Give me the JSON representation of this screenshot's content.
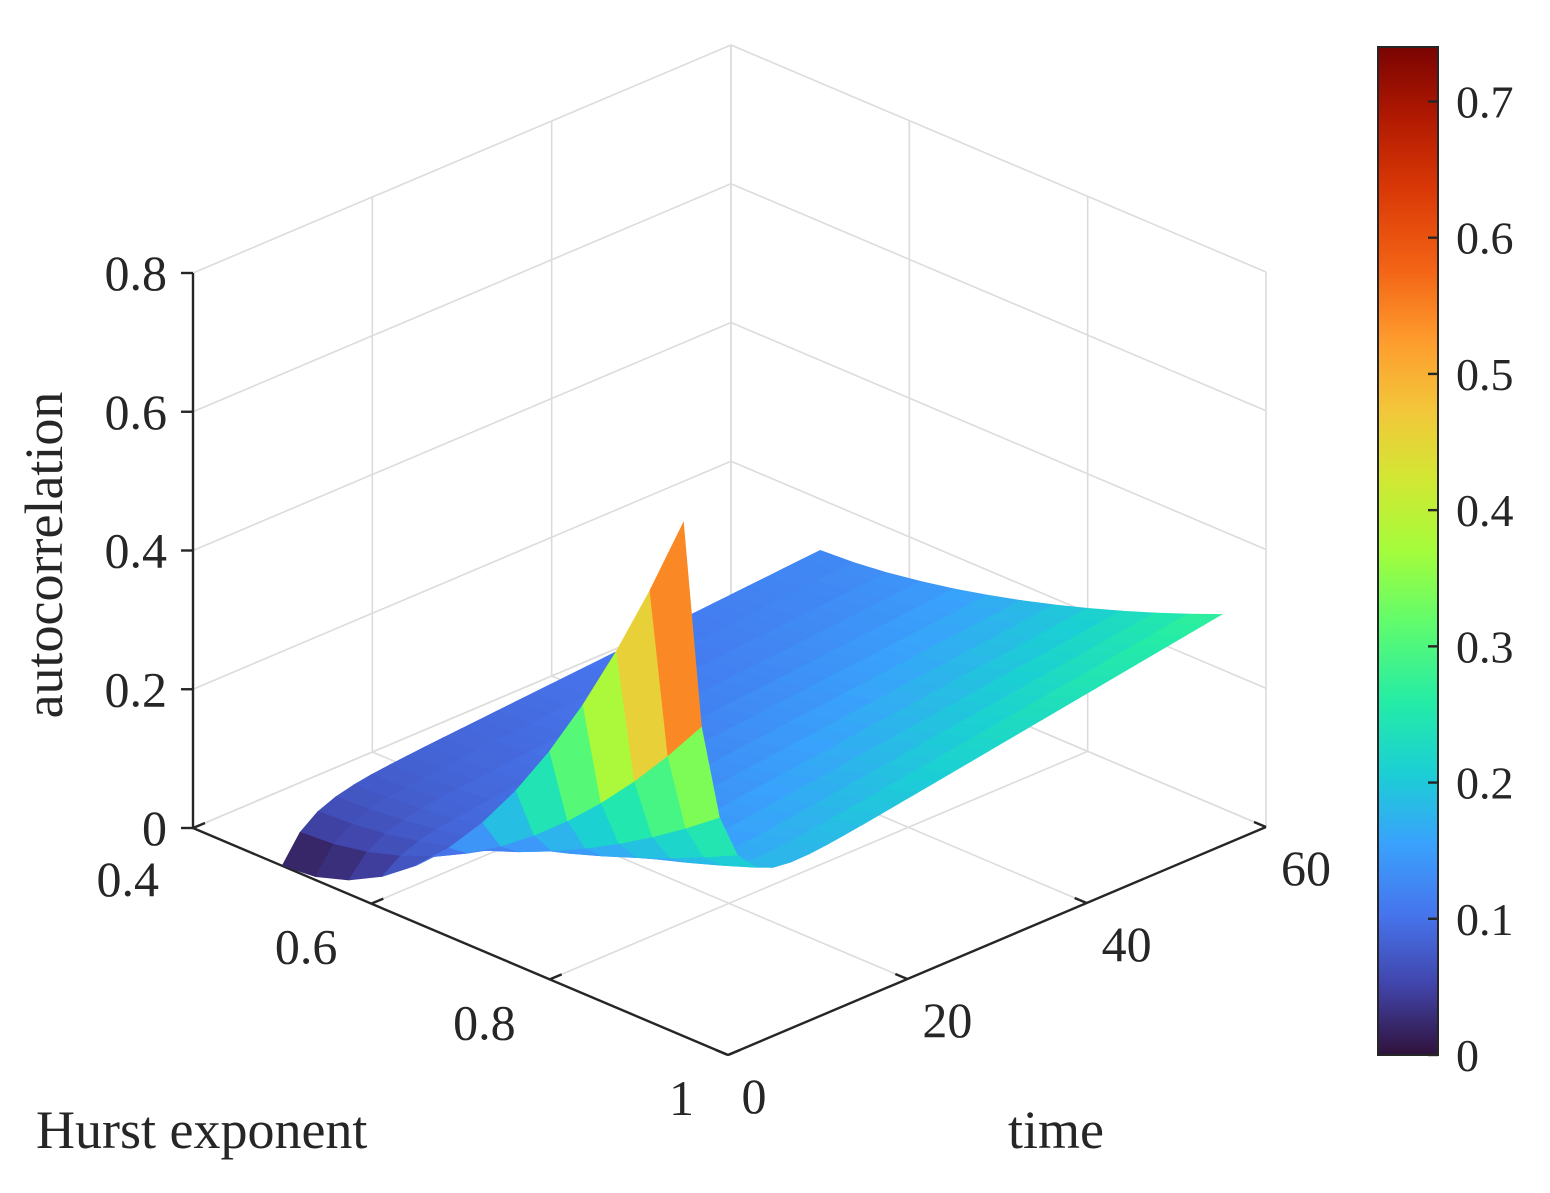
{
  "chart_data": {
    "type": "surface3d",
    "title": "",
    "xlabel": "time",
    "ylabel": "Hurst exponent",
    "zlabel": "autocorrelation",
    "x": {
      "min": 0,
      "max": 60,
      "ticks": [
        0,
        20,
        40,
        60
      ],
      "tick_labels": [
        "0",
        "20",
        "40",
        "60"
      ]
    },
    "y": {
      "min": 0.4,
      "max": 1.0,
      "ticks": [
        0.4,
        0.6,
        0.8,
        1.0
      ],
      "tick_labels": [
        "0.4",
        "0.6",
        "0.8",
        "1"
      ]
    },
    "z": {
      "min": 0,
      "max": 0.8,
      "ticks": [
        0,
        0.2,
        0.4,
        0.6,
        0.8
      ],
      "tick_labels": [
        "0",
        "0.2",
        "0.4",
        "0.6",
        "0.8"
      ]
    },
    "surface": {
      "x_range": [
        0,
        60
      ],
      "y_range": [
        0.5,
        0.95
      ],
      "corner_values": {
        "x0_ymin": 0.0,
        "x0_ymax": 0.74,
        "x60_ymin": 0.14,
        "x60_ymax": 0.31
      }
    },
    "colorbar": {
      "min": 0,
      "max": 0.74,
      "ticks": [
        0,
        0.1,
        0.2,
        0.3,
        0.4,
        0.5,
        0.6,
        0.7
      ],
      "tick_labels": [
        "0",
        "0.1",
        "0.2",
        "0.3",
        "0.4",
        "0.5",
        "0.6",
        "0.7"
      ]
    },
    "grid": true,
    "colormap": "turbo"
  }
}
